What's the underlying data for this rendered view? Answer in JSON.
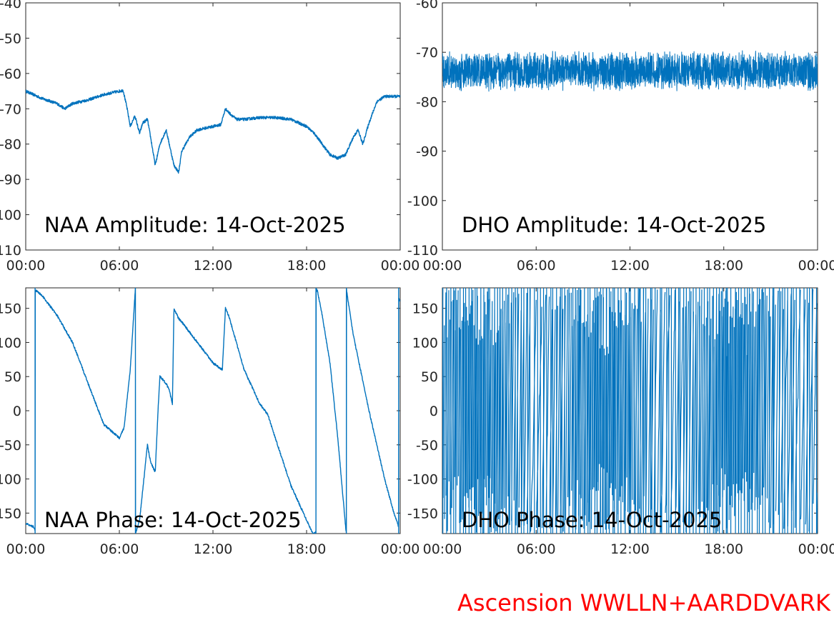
{
  "line_color": "#0072BD",
  "credit": {
    "text": "Ascension WWLLN+AARDDVARK",
    "color": "#ff0000"
  },
  "chart_data": [
    {
      "id": "naa-amp",
      "type": "line",
      "title": "NAA Amplitude: 14-Oct-2025",
      "xlabel": "",
      "ylabel": "",
      "x_unit": "hours",
      "xlim": [
        0,
        24
      ],
      "ylim": [
        -110,
        -40
      ],
      "x_ticks": [
        {
          "v": 0,
          "label": "00:00"
        },
        {
          "v": 6,
          "label": "06:00"
        },
        {
          "v": 12,
          "label": "12:00"
        },
        {
          "v": 18,
          "label": "18:00"
        },
        {
          "v": 24,
          "label": "00:00"
        }
      ],
      "y_ticks": [
        {
          "v": -40,
          "label": "-40"
        },
        {
          "v": -50,
          "label": "-50"
        },
        {
          "v": -60,
          "label": "-60"
        },
        {
          "v": -70,
          "label": "-70"
        },
        {
          "v": -80,
          "label": "-80"
        },
        {
          "v": -90,
          "label": "-90"
        },
        {
          "v": -100,
          "label": "-100"
        },
        {
          "v": -110,
          "label": "-110"
        }
      ],
      "noise": 0.4,
      "series": [
        {
          "x": [
            0,
            1,
            2,
            2.5,
            3,
            4,
            5,
            6,
            6.25,
            6.5,
            6.7,
            7,
            7.3,
            7.5,
            7.8,
            8,
            8.3,
            8.6,
            9,
            9.5,
            9.8,
            10,
            10.5,
            11,
            12,
            12.5,
            12.8,
            13,
            13.5,
            14,
            15,
            16,
            17,
            18,
            18.5,
            19,
            19.5,
            20,
            20.5,
            21,
            21.3,
            21.6,
            22,
            22.5,
            23,
            23.5,
            24
          ],
          "y": [
            -65,
            -67,
            -68.5,
            -70,
            -68.5,
            -67.5,
            -66,
            -65,
            -64.8,
            -70,
            -75,
            -72,
            -77,
            -74,
            -73,
            -78,
            -86,
            -80,
            -76,
            -86,
            -88,
            -82,
            -78,
            -76,
            -75,
            -74.5,
            -70,
            -71,
            -73,
            -73,
            -72.5,
            -72.5,
            -73,
            -75,
            -77,
            -80,
            -83,
            -84,
            -83,
            -78,
            -76,
            -80,
            -74,
            -68,
            -66.5,
            -66.5,
            -66.5
          ]
        }
      ]
    },
    {
      "id": "dho-amp",
      "type": "line",
      "title": "DHO Amplitude: 14-Oct-2025",
      "xlabel": "",
      "ylabel": "",
      "x_unit": "hours",
      "xlim": [
        0,
        24
      ],
      "ylim": [
        -110,
        -60
      ],
      "x_ticks": [
        {
          "v": 0,
          "label": "00:00"
        },
        {
          "v": 6,
          "label": "06:00"
        },
        {
          "v": 12,
          "label": "12:00"
        },
        {
          "v": 18,
          "label": "18:00"
        },
        {
          "v": 24,
          "label": "00:00"
        }
      ],
      "y_ticks": [
        {
          "v": -60,
          "label": "-60"
        },
        {
          "v": -70,
          "label": "-70"
        },
        {
          "v": -80,
          "label": "-80"
        },
        {
          "v": -90,
          "label": "-90"
        },
        {
          "v": -100,
          "label": "-100"
        },
        {
          "v": -110,
          "label": "-110"
        }
      ],
      "band": {
        "center": -73.8,
        "half_width": 4.2
      },
      "series": [
        {
          "x": [
            0,
            24
          ],
          "y": [
            -73.8,
            -73.8
          ]
        }
      ]
    },
    {
      "id": "naa-phase",
      "type": "line",
      "title": "NAA Phase: 14-Oct-2025",
      "xlabel": "",
      "ylabel": "",
      "x_unit": "hours",
      "xlim": [
        0,
        24
      ],
      "ylim": [
        -180,
        180
      ],
      "x_ticks": [
        {
          "v": 0,
          "label": "00:00"
        },
        {
          "v": 6,
          "label": "06:00"
        },
        {
          "v": 12,
          "label": "12:00"
        },
        {
          "v": 18,
          "label": "18:00"
        },
        {
          "v": 24,
          "label": "00:00"
        }
      ],
      "y_ticks": [
        {
          "v": 150,
          "label": "150"
        },
        {
          "v": 100,
          "label": "100"
        },
        {
          "v": 50,
          "label": "50"
        },
        {
          "v": 0,
          "label": "0"
        },
        {
          "v": -50,
          "label": "-50"
        },
        {
          "v": -100,
          "label": "-100"
        },
        {
          "v": -150,
          "label": "-150"
        }
      ],
      "noise": 1.5,
      "series": [
        {
          "x": [
            0,
            0.5,
            0.6,
            0.6,
            0.7,
            1,
            2,
            3,
            4,
            5,
            6,
            6.3,
            6.7,
            7,
            7.03,
            7.03,
            7.3,
            7.8,
            8,
            8.3,
            8.5,
            8.6,
            9,
            9.2,
            9.4,
            9.5,
            9.8,
            10,
            11,
            12,
            12.6,
            12.8,
            13,
            13.5,
            14,
            15,
            15.5,
            16,
            17,
            18,
            18.4,
            18.6,
            18.6,
            18.7,
            19,
            19.5,
            20,
            20.5,
            20.55,
            20.55,
            20.6,
            21,
            22,
            23,
            23.6,
            23.9,
            23.9,
            24
          ],
          "y": [
            -165,
            -170,
            -175,
            178,
            175,
            170,
            140,
            100,
            40,
            -20,
            -40,
            -25,
            60,
            170,
            180,
            -180,
            -160,
            -50,
            -75,
            -90,
            10,
            50,
            40,
            30,
            10,
            150,
            135,
            130,
            100,
            70,
            60,
            150,
            140,
            100,
            60,
            10,
            -5,
            -40,
            -110,
            -160,
            -180,
            -178,
            180,
            175,
            140,
            70,
            -40,
            -170,
            -180,
            180,
            170,
            110,
            0,
            -100,
            -150,
            -170,
            165,
            160
          ]
        }
      ]
    },
    {
      "id": "dho-phase",
      "type": "line",
      "title": "DHO Phase: 14-Oct-2025",
      "xlabel": "",
      "ylabel": "",
      "x_unit": "hours",
      "xlim": [
        0,
        24
      ],
      "ylim": [
        -180,
        180
      ],
      "x_ticks": [
        {
          "v": 0,
          "label": "00:00"
        },
        {
          "v": 6,
          "label": "06:00"
        },
        {
          "v": 12,
          "label": "12:00"
        },
        {
          "v": 18,
          "label": "18:00"
        },
        {
          "v": 24,
          "label": "00:00"
        }
      ],
      "y_ticks": [
        {
          "v": 150,
          "label": "150"
        },
        {
          "v": 100,
          "label": "100"
        },
        {
          "v": 50,
          "label": "50"
        },
        {
          "v": 0,
          "label": "0"
        },
        {
          "v": -50,
          "label": "-50"
        },
        {
          "v": -100,
          "label": "-100"
        },
        {
          "v": -150,
          "label": "-150"
        }
      ],
      "wrap_phase": true,
      "series": [
        {
          "x": [
            0,
            24
          ],
          "y": [
            -180,
            180
          ]
        }
      ]
    }
  ]
}
